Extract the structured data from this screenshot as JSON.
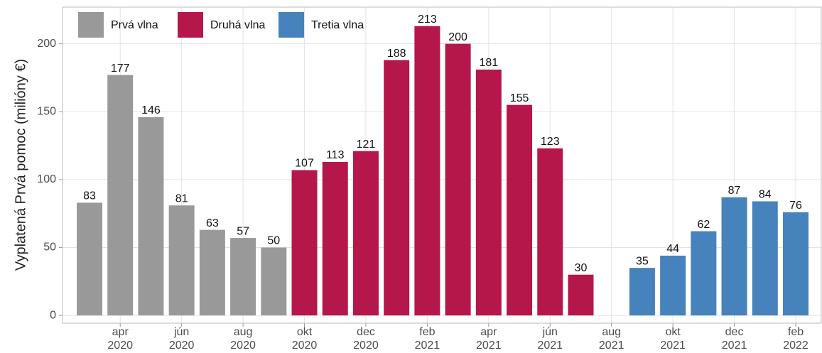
{
  "chart_data": {
    "type": "bar",
    "y_label": "Vyplatená Prvá pomoc (milióny €)",
    "categories": [
      null,
      "apr\n2020",
      null,
      "jún\n2020",
      null,
      "aug\n2020",
      null,
      "okt\n2020",
      null,
      "dec\n2020",
      null,
      "feb\n2021",
      null,
      "apr\n2021",
      null,
      "jún\n2021",
      null,
      "aug\n2021",
      null,
      "okt\n2021",
      null,
      "dec\n2021",
      null,
      "feb\n2022"
    ],
    "series": [
      {
        "name": "Prvá vlna",
        "color": "#999999",
        "values": [
          83,
          177,
          146,
          81,
          63,
          57,
          50,
          null,
          null,
          null,
          null,
          null,
          null,
          null,
          null,
          null,
          null,
          null,
          null,
          null,
          null,
          null,
          null,
          null
        ]
      },
      {
        "name": "Druhá vlna",
        "color": "#b5174a",
        "values": [
          null,
          null,
          null,
          null,
          null,
          null,
          null,
          107,
          113,
          121,
          188,
          213,
          200,
          181,
          155,
          123,
          30,
          null,
          null,
          null,
          null,
          null,
          null,
          null
        ]
      },
      {
        "name": "Tretia vlna",
        "color": "#4682bc",
        "values": [
          null,
          null,
          null,
          null,
          null,
          null,
          null,
          null,
          null,
          null,
          null,
          null,
          null,
          null,
          null,
          null,
          null,
          null,
          35,
          44,
          62,
          87,
          84,
          76
        ]
      }
    ],
    "ylim": [
      -5.7,
      227
    ],
    "yticks": [
      0,
      50,
      100,
      150,
      200
    ],
    "grid": true,
    "legend": "top-left"
  }
}
